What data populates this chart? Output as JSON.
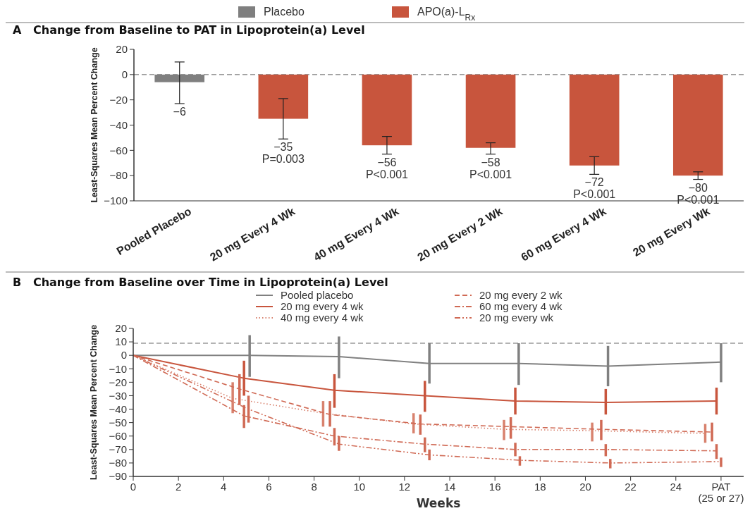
{
  "chart_data": [
    {
      "type": "bar",
      "title": "A   Change from Baseline to PAT in Lipoprotein(a) Level",
      "ylabel": "Least-Squares Mean Percent Change",
      "categories": [
        "Pooled Placebo",
        "20 mg Every 4 Wk",
        "40 mg Every 4 Wk",
        "20 mg Every 2 Wk",
        "60 mg Every 4 Wk",
        "20 mg Every Wk"
      ],
      "legend": "top",
      "series": [
        {
          "name": "Placebo",
          "color": "#7f7f7f",
          "values": [
            -6,
            null,
            null,
            null,
            null,
            null
          ],
          "errors": [
            [
              -23,
              10
            ],
            null,
            null,
            null,
            null,
            null
          ],
          "value_labels": [
            "−6",
            null,
            null,
            null,
            null,
            null
          ]
        },
        {
          "name": "APO(a)-L$_{Rx}$",
          "color": "#c8553d",
          "values": [
            null,
            -35,
            -56,
            -58,
            -72,
            -80
          ],
          "errors": [
            null,
            [
              -51,
              -19
            ],
            [
              -63,
              -49
            ],
            [
              -63,
              -54
            ],
            [
              -79,
              -65
            ],
            [
              -83,
              -77
            ]
          ],
          "value_labels": [
            null,
            "−35\nP=0.003",
            "−56\nP<0.001",
            "−58\nP<0.001",
            "−72\nP<0.001",
            "−80\nP<0.001"
          ]
        }
      ],
      "ylim": [
        -100,
        20
      ],
      "yticks": [
        -100,
        -80,
        -60,
        -40,
        -20,
        0,
        20
      ],
      "ref_lines": [
        {
          "axis": "y",
          "value": 0,
          "color": "#9a9a9a",
          "line_style": "dashed"
        }
      ],
      "grid": false
    },
    {
      "type": "line",
      "title": "B   Change from Baseline over Time in Lipoprotein(a) Level",
      "xlabel": "Weeks",
      "ylabel": "Least-Squares Mean Percent Change",
      "legend": "top",
      "marker": "none",
      "xlim": [
        0,
        27
      ],
      "xticks": [
        0,
        2,
        4,
        6,
        8,
        10,
        12,
        14,
        16,
        18,
        20,
        22,
        24,
        {
          "value": 26,
          "label": "PAT\n(25 or 27)"
        }
      ],
      "ylim": [
        -90,
        20
      ],
      "yticks": [
        -90,
        -80,
        -70,
        -60,
        -50,
        -40,
        -30,
        -20,
        -10,
        0,
        10,
        20
      ],
      "grid": false,
      "ref_lines": [
        {
          "axis": "y",
          "value": 9,
          "color": "#9a9a9a",
          "line_style": "dashed"
        }
      ],
      "series": [
        {
          "name": "Pooled placebo",
          "color": "#808080",
          "line_style": "solid",
          "x": [
            0,
            5.15,
            9.1,
            13.1,
            17.05,
            21,
            26
          ],
          "values": [
            0,
            0,
            -1,
            -6,
            -6,
            -8,
            -5
          ],
          "errors": [
            null,
            [
              -16,
              15
            ],
            [
              -17,
              14
            ],
            [
              -21,
              9
            ],
            [
              -22,
              9
            ],
            [
              -23,
              7
            ],
            [
              -20,
              9
            ]
          ]
        },
        {
          "name": "20 mg every 4 wk",
          "color": "#c8553d",
          "line_style": "solid",
          "x": [
            0,
            4.9,
            8.9,
            12.9,
            16.9,
            20.9,
            25.8
          ],
          "values": [
            0,
            -17,
            -26,
            -30,
            -34,
            -35,
            -34
          ],
          "errors": [
            null,
            [
              -30,
              -4
            ],
            [
              -39,
              -14
            ],
            [
              -42,
              -19
            ],
            [
              -44,
              -24
            ],
            [
              -44,
              -25
            ],
            [
              -44,
              -24
            ]
          ]
        },
        {
          "name": "40 mg every 4 wk",
          "color": "#d8826e",
          "line_style": "dotted",
          "x": [
            0,
            4.4,
            8.4,
            12.4,
            16.4,
            20.3,
            25.3
          ],
          "values": [
            0,
            -32,
            -43,
            -51,
            -55,
            -56,
            -58
          ],
          "errors": [
            null,
            [
              -43,
              -20
            ],
            [
              -53,
              -34
            ],
            [
              -58,
              -43
            ],
            [
              -63,
              -48
            ],
            [
              -64,
              -50
            ],
            [
              -65,
              -51
            ]
          ]
        },
        {
          "name": "20 mg every 2 wk",
          "color": "#d06a55",
          "line_style": "dashed",
          "x": [
            0,
            4.7,
            8.7,
            12.7,
            16.7,
            20.7,
            25.6
          ],
          "values": [
            0,
            -25,
            -44,
            -51,
            -53,
            -55,
            -57
          ],
          "errors": [
            null,
            [
              -37,
              -14
            ],
            [
              -53,
              -34
            ],
            [
              -59,
              -44
            ],
            [
              -62,
              -46
            ],
            [
              -63,
              -48
            ],
            [
              -64,
              -50
            ]
          ]
        },
        {
          "name": "60 mg every 4 wk",
          "color": "#d06a55",
          "line_style": "dashdot",
          "x": [
            0,
            4.9,
            8.9,
            12.9,
            16.9,
            20.9,
            25.8
          ],
          "values": [
            0,
            -45,
            -60,
            -66,
            -70,
            -70,
            -71
          ],
          "errors": [
            null,
            [
              -54,
              -37
            ],
            [
              -67,
              -54
            ],
            [
              -72,
              -61
            ],
            [
              -75,
              -65
            ],
            [
              -75,
              -66
            ],
            [
              -77,
              -66
            ]
          ]
        },
        {
          "name": "20 mg every wk",
          "color": "#d06a55",
          "line_style": "dashdotdot",
          "x": [
            0,
            5.1,
            9.1,
            13.1,
            17.1,
            21.1,
            26
          ],
          "values": [
            0,
            -40,
            -66,
            -74,
            -78,
            -80,
            -79
          ],
          "errors": [
            null,
            [
              -50,
              -30
            ],
            [
              -71,
              -60
            ],
            [
              -78,
              -70
            ],
            [
              -82,
              -75
            ],
            [
              -84,
              -77
            ],
            [
              -83,
              -76
            ]
          ]
        }
      ]
    }
  ]
}
